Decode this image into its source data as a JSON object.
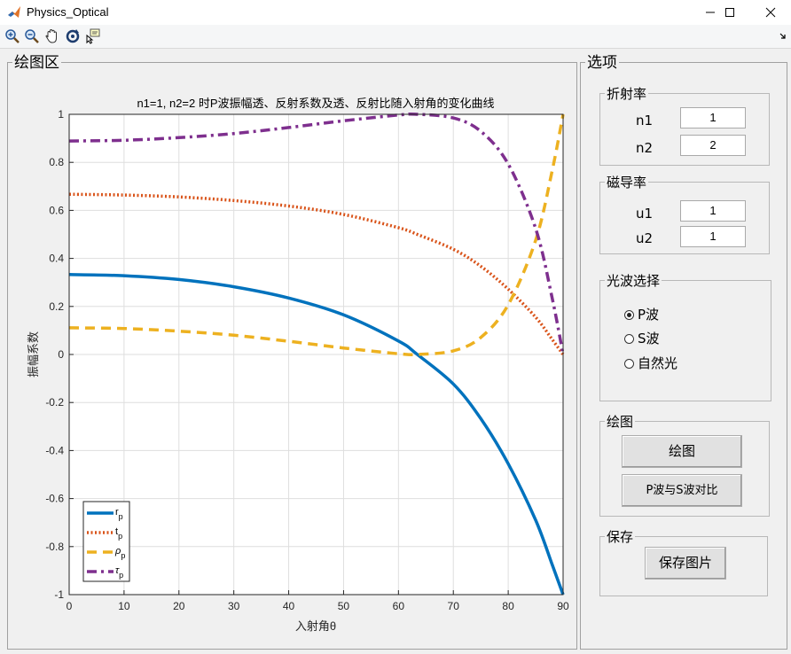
{
  "window": {
    "title": "Physics_Optical",
    "minimize_icon": "minimize-icon",
    "maximize_icon": "maximize-icon",
    "close_icon": "close-icon"
  },
  "toolbar": {
    "tools": [
      "zoom-in-icon",
      "zoom-out-icon",
      "pan-hand-icon",
      "rotate-3d-icon",
      "data-cursor-icon"
    ]
  },
  "plot_panel": {
    "title": "绘图区"
  },
  "options_panel": {
    "title": "选项",
    "refraction": {
      "title": "折射率",
      "n1_label": "n1",
      "n1_value": "1",
      "n2_label": "n2",
      "n2_value": "2"
    },
    "permeability": {
      "title": "磁导率",
      "u1_label": "u1",
      "u1_value": "1",
      "u2_label": "u2",
      "u2_value": "1"
    },
    "wave": {
      "title": "光波选择",
      "options": [
        "P波",
        "S波",
        "自然光"
      ],
      "selected": "P波"
    },
    "draw": {
      "title": "绘图",
      "draw_button": "绘图",
      "compare_button": "P波与S波对比"
    },
    "save": {
      "title": "保存",
      "save_button": "保存图片"
    }
  },
  "chart_data": {
    "type": "line",
    "title": "n1=1, n2=2 时P波振幅透、反射系数及透、反射比随入射角的变化曲线",
    "xlabel": "入射角θ",
    "ylabel": "振幅系数",
    "xlim": [
      0,
      90
    ],
    "ylim": [
      -1,
      1
    ],
    "xticks": [
      0,
      10,
      20,
      30,
      40,
      50,
      60,
      70,
      80,
      90
    ],
    "yticks": [
      1,
      0.8,
      0.6,
      0.4,
      0.2,
      0,
      -0.2,
      -0.4,
      -0.6,
      -0.8,
      -1
    ],
    "grid": true,
    "legend_position": "bottom-left",
    "x": [
      0,
      10,
      20,
      30,
      40,
      50,
      60,
      63.43,
      70,
      75,
      80,
      85,
      88,
      90
    ],
    "series": [
      {
        "name": "r_p",
        "color": "#0072BD",
        "style": "solid",
        "values": [
          0.333,
          0.328,
          0.312,
          0.282,
          0.235,
          0.165,
          0.056,
          0.0,
          -0.123,
          -0.267,
          -0.455,
          -0.69,
          -0.874,
          -1.0
        ]
      },
      {
        "name": "t_p",
        "color": "#D95319",
        "style": "dotted",
        "values": [
          0.667,
          0.664,
          0.656,
          0.641,
          0.618,
          0.583,
          0.528,
          0.5,
          0.438,
          0.367,
          0.272,
          0.155,
          0.063,
          0.0
        ]
      },
      {
        "name": "ρ_p",
        "color": "#EDB120",
        "style": "dashed",
        "values": [
          0.111,
          0.108,
          0.097,
          0.08,
          0.055,
          0.027,
          0.003,
          0.0,
          0.015,
          0.071,
          0.207,
          0.476,
          0.764,
          1.0
        ]
      },
      {
        "name": "τ_p",
        "color": "#7E2F8E",
        "style": "dashdot",
        "values": [
          0.889,
          0.892,
          0.903,
          0.92,
          0.945,
          0.973,
          0.997,
          1.0,
          0.985,
          0.929,
          0.793,
          0.524,
          0.236,
          0.0
        ]
      }
    ]
  }
}
